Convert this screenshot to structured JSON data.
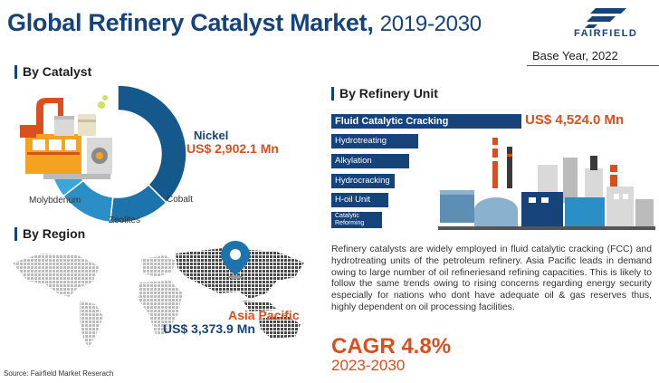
{
  "header": {
    "title": "Global Refinery Catalyst Market,",
    "years": "2019-2030",
    "logo_text": "FAIRFIELD",
    "base_year": "Base Year, 2022"
  },
  "sections": {
    "catalyst": "By Catalyst",
    "region": "By Region",
    "refinery_unit": "By Refinery Unit"
  },
  "colors": {
    "brand_blue": "#15437a",
    "accent_orange": "#d9501e",
    "donut": [
      "#15598c",
      "#1d74ad",
      "#2a8fc6",
      "#3ba6d9"
    ]
  },
  "icons": [
    "logo-icon",
    "map-pin-icon",
    "refinery-plant-icon",
    "factory-icon"
  ],
  "chart_data": [
    {
      "type": "pie",
      "title": "By Catalyst",
      "categories": [
        "Nickel",
        "Cobalt",
        "Zeolites",
        "Molybdenum"
      ],
      "shares": [
        0.5,
        0.19,
        0.17,
        0.14
      ],
      "callout": {
        "name": "Nickel",
        "value": "US$ 2,902.1 Mn"
      }
    },
    {
      "type": "bar",
      "title": "By Refinery Unit",
      "categories": [
        "Fluid Catalytic Cracking",
        "Hydrotreating",
        "Alkylation",
        "Hydrocracking",
        "H-oil Unit",
        "Catalytic Reforming"
      ],
      "values": [
        4524.0,
        1860,
        1700,
        1310,
        1200,
        1060
      ],
      "callout": {
        "name": "Fluid Catalytic Cracking",
        "value": "US$ 4,524.0 Mn"
      }
    }
  ],
  "region": {
    "name": "Asia Pacific",
    "value": "US$ 3,373.9 Mn"
  },
  "description": "Refinery catalysts are widely employed in fluid catalytic cracking (FCC) and hydrotreating units of the petroleum refinery. Asia Pacific leads in demand owing to large number of oil refineriesand refining capacities. This is likely to follow the same trends owing to rising concerns regarding energy security especially for nations who dont have adequate oil & gas reserves thus, highly dependent on oil processing facilities.",
  "cagr": {
    "label": "CAGR 4.8%",
    "years": "2023-2030"
  },
  "source": "Source: Fairfield Market Reserach"
}
